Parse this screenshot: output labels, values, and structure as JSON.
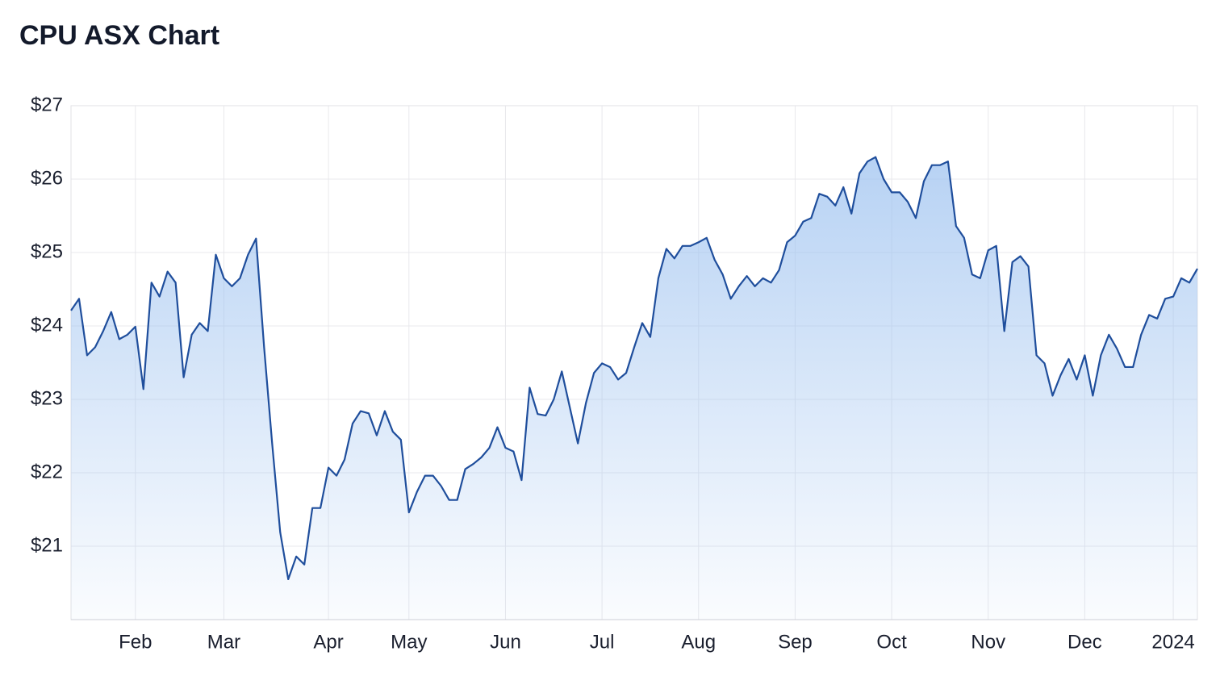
{
  "chart_data": {
    "type": "area",
    "title": "CPU ASX Chart",
    "color": "#1f4e9c",
    "fill": "#9fc3f0",
    "grid": true,
    "ylim": [
      20,
      27
    ],
    "yticks": [
      {
        "value": 21,
        "label": "$21"
      },
      {
        "value": 22,
        "label": "$22"
      },
      {
        "value": 23,
        "label": "$23"
      },
      {
        "value": 24,
        "label": "$24"
      },
      {
        "value": 25,
        "label": "$25"
      },
      {
        "value": 26,
        "label": "$26"
      },
      {
        "value": 27,
        "label": "$27"
      }
    ],
    "categories": [
      null,
      null,
      null,
      null,
      null,
      null,
      null,
      null,
      "Feb",
      null,
      null,
      null,
      null,
      null,
      null,
      null,
      null,
      null,
      null,
      "Mar",
      null,
      null,
      null,
      null,
      null,
      null,
      null,
      null,
      null,
      null,
      null,
      null,
      "Apr",
      null,
      null,
      null,
      null,
      null,
      null,
      null,
      null,
      null,
      "May",
      null,
      null,
      null,
      null,
      null,
      null,
      null,
      null,
      null,
      null,
      null,
      "Jun",
      null,
      null,
      null,
      null,
      null,
      null,
      null,
      null,
      null,
      null,
      null,
      "Jul",
      null,
      null,
      null,
      null,
      null,
      null,
      null,
      null,
      null,
      null,
      null,
      "Aug",
      null,
      null,
      null,
      null,
      null,
      null,
      null,
      null,
      null,
      null,
      null,
      "Sep",
      null,
      null,
      null,
      null,
      null,
      null,
      null,
      null,
      null,
      null,
      null,
      "Oct",
      null,
      null,
      null,
      null,
      null,
      null,
      null,
      null,
      null,
      null,
      null,
      "Nov",
      null,
      null,
      null,
      null,
      null,
      null,
      null,
      null,
      null,
      null,
      null,
      "Dec",
      null,
      null,
      null,
      null,
      null,
      null,
      null,
      null,
      null,
      null,
      "2024",
      null,
      null,
      null
    ],
    "values": [
      24.21,
      24.37,
      23.6,
      23.71,
      23.93,
      24.19,
      23.82,
      23.88,
      23.99,
      23.14,
      24.59,
      24.4,
      24.74,
      24.59,
      23.3,
      23.88,
      24.04,
      23.93,
      24.97,
      24.65,
      24.54,
      24.65,
      24.97,
      25.19,
      23.71,
      22.4,
      21.19,
      20.55,
      20.86,
      20.75,
      21.52,
      21.52,
      22.07,
      21.96,
      22.18,
      22.67,
      22.84,
      22.81,
      22.51,
      22.84,
      22.56,
      22.45,
      21.46,
      21.74,
      21.96,
      21.96,
      21.82,
      21.63,
      21.63,
      22.05,
      22.12,
      22.21,
      22.34,
      22.62,
      22.34,
      22.29,
      21.9,
      23.16,
      22.8,
      22.78,
      23.0,
      23.38,
      22.89,
      22.4,
      22.95,
      23.36,
      23.49,
      23.44,
      23.27,
      23.36,
      23.71,
      24.04,
      23.85,
      24.65,
      25.05,
      24.92,
      25.09,
      25.09,
      25.14,
      25.2,
      24.9,
      24.7,
      24.37,
      24.54,
      24.68,
      24.54,
      24.65,
      24.59,
      24.76,
      25.14,
      25.23,
      25.42,
      25.47,
      25.8,
      25.76,
      25.64,
      25.89,
      25.53,
      26.08,
      26.24,
      26.3,
      26.0,
      25.82,
      25.82,
      25.69,
      25.47,
      25.97,
      26.19,
      26.19,
      26.24,
      25.36,
      25.2,
      24.7,
      24.65,
      25.03,
      25.09,
      23.93,
      24.87,
      24.95,
      24.81,
      23.6,
      23.49,
      23.05,
      23.33,
      23.55,
      23.27,
      23.6,
      23.05,
      23.6,
      23.88,
      23.69,
      23.44,
      23.44,
      23.88,
      24.15,
      24.1,
      24.37,
      24.4,
      24.65,
      24.59,
      24.78
    ]
  }
}
